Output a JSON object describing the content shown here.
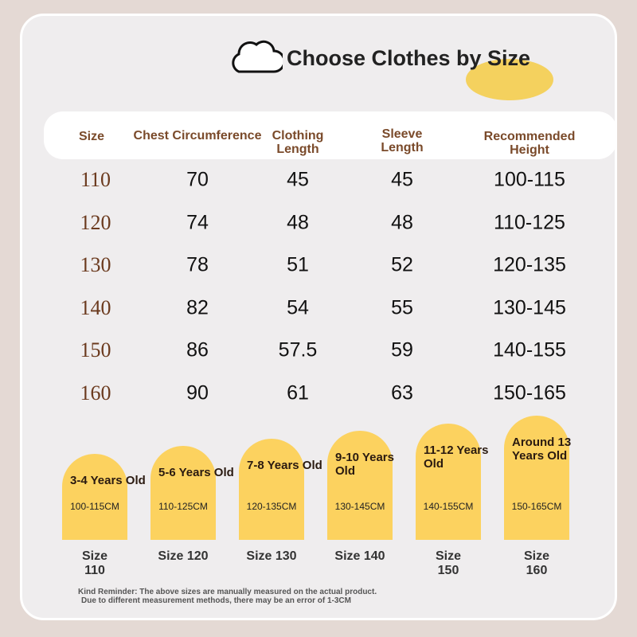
{
  "header": {
    "title": "Choose Clothes by Size"
  },
  "table": {
    "columns": [
      "Size",
      "Chest Circumference",
      "Clothing Length",
      "Sleeve Length",
      "Recommended Height"
    ],
    "rows": [
      [
        110,
        70,
        45,
        45,
        "100-115"
      ],
      [
        120,
        74,
        48,
        48,
        "110-125"
      ],
      [
        130,
        78,
        51,
        52,
        "120-135"
      ],
      [
        140,
        82,
        54,
        55,
        "130-145"
      ],
      [
        150,
        86,
        57.5,
        59,
        "140-155"
      ],
      [
        160,
        90,
        61,
        63,
        "150-165"
      ]
    ]
  },
  "age_guide": [
    {
      "age": "3-4 Years Old",
      "range": "100-115CM",
      "size": "Size 110"
    },
    {
      "age": "5-6 Years Old",
      "range": "110-125CM",
      "size": "Size 120"
    },
    {
      "age": "7-8 Years Old",
      "range": "120-135CM",
      "size": "Size 130"
    },
    {
      "age": "9-10 Years Old",
      "range": "130-145CM",
      "size": "Size 140"
    },
    {
      "age": "11-12 Years Old",
      "range": "140-155CM",
      "size": "Size 150"
    },
    {
      "age": "Around 13 Years Old",
      "range": "150-165CM",
      "size": "Size 160"
    }
  ],
  "note": [
    "Kind Reminder: The above sizes are manually measured on the actual product.",
    "Due to different measurement methods, there may be an error of 1-3CM"
  ]
}
